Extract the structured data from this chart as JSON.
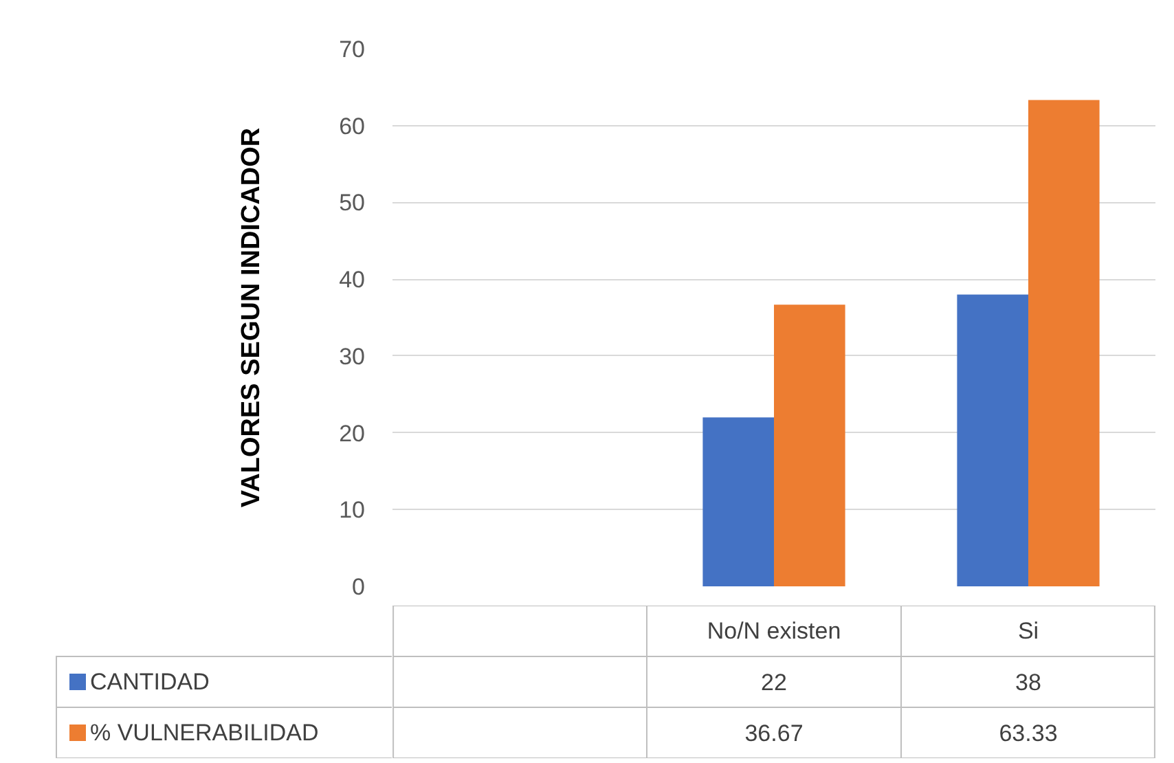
{
  "chart_data": {
    "type": "bar",
    "ylabel": "VALORES SEGUN INDICADOR",
    "categories": [
      null,
      "No/N existen",
      "Si"
    ],
    "series": [
      {
        "name": "CANTIDAD",
        "color": "#4472c4",
        "values": [
          null,
          22,
          38
        ]
      },
      {
        "name": "% VULNERABILIDAD",
        "color": "#ed7d31",
        "values": [
          null,
          36.67,
          63.33
        ]
      }
    ],
    "ylim": [
      0,
      70
    ],
    "yticks": [
      0,
      10,
      20,
      30,
      40,
      50,
      60,
      70
    ],
    "grid": "y",
    "legend": "bottom left",
    "data_labels": true
  }
}
